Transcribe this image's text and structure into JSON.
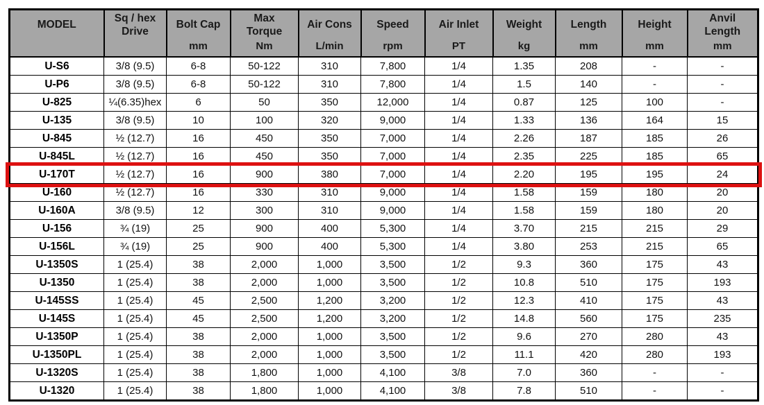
{
  "colors": {
    "page_background": "#ffffff",
    "header_background": "#a6a6a6",
    "grid_border": "#000000",
    "highlight_border": "#dd1111"
  },
  "table": {
    "columns": [
      {
        "key": "model",
        "label": "MODEL",
        "unit": ""
      },
      {
        "key": "drive",
        "label": "Sq / hex\nDrive",
        "unit": ""
      },
      {
        "key": "bolt_cap",
        "label": "Bolt Cap",
        "unit": "mm"
      },
      {
        "key": "max_torque",
        "label": "Max\nTorque",
        "unit": "Nm"
      },
      {
        "key": "air_cons",
        "label": "Air Cons",
        "unit": "L/min"
      },
      {
        "key": "speed",
        "label": "Speed",
        "unit": "rpm"
      },
      {
        "key": "air_inlet",
        "label": "Air Inlet",
        "unit": "PT"
      },
      {
        "key": "weight",
        "label": "Weight",
        "unit": "kg"
      },
      {
        "key": "length",
        "label": "Length",
        "unit": "mm"
      },
      {
        "key": "height",
        "label": "Height",
        "unit": "mm"
      },
      {
        "key": "anvil_length",
        "label": "Anvil\nLength",
        "unit": "mm"
      }
    ],
    "rows": [
      {
        "cells": [
          "U-S6",
          "3/8 (9.5)",
          "6-8",
          "50-122",
          "310",
          "7,800",
          "1/4",
          "1.35",
          "208",
          "-",
          "-"
        ]
      },
      {
        "cells": [
          "U-P6",
          "3/8 (9.5)",
          "6-8",
          "50-122",
          "310",
          "7,800",
          "1/4",
          "1.5",
          "140",
          "-",
          "-"
        ]
      },
      {
        "cells": [
          "U-825",
          "¼(6.35)hex",
          "6",
          "50",
          "350",
          "12,000",
          "1/4",
          "0.87",
          "125",
          "100",
          "-"
        ]
      },
      {
        "cells": [
          "U-135",
          "3/8 (9.5)",
          "10",
          "100",
          "320",
          "9,000",
          "1/4",
          "1.33",
          "136",
          "164",
          "15"
        ]
      },
      {
        "cells": [
          "U-845",
          "½ (12.7)",
          "16",
          "450",
          "350",
          "7,000",
          "1/4",
          "2.26",
          "187",
          "185",
          "26"
        ]
      },
      {
        "cells": [
          "U-845L",
          "½ (12.7)",
          "16",
          "450",
          "350",
          "7,000",
          "1/4",
          "2.35",
          "225",
          "185",
          "65"
        ]
      },
      {
        "cells": [
          "U-170T",
          "½ (12.7)",
          "16",
          "900",
          "380",
          "7,000",
          "1/4",
          "2.20",
          "195",
          "195",
          "24"
        ]
      },
      {
        "cells": [
          "U-160",
          "½ (12.7)",
          "16",
          "330",
          "310",
          "9,000",
          "1/4",
          "1.58",
          "159",
          "180",
          "20"
        ]
      },
      {
        "cells": [
          "U-160A",
          "3/8 (9.5)",
          "12",
          "300",
          "310",
          "9,000",
          "1/4",
          "1.58",
          "159",
          "180",
          "20"
        ]
      },
      {
        "cells": [
          "U-156",
          "¾ (19)",
          "25",
          "900",
          "400",
          "5,300",
          "1/4",
          "3.70",
          "215",
          "215",
          "29"
        ]
      },
      {
        "cells": [
          "U-156L",
          "¾ (19)",
          "25",
          "900",
          "400",
          "5,300",
          "1/4",
          "3.80",
          "253",
          "215",
          "65"
        ]
      },
      {
        "cells": [
          "U-1350S",
          "1 (25.4)",
          "38",
          "2,000",
          "1,000",
          "3,500",
          "1/2",
          "9.3",
          "360",
          "175",
          "43"
        ]
      },
      {
        "cells": [
          "U-1350",
          "1 (25.4)",
          "38",
          "2,000",
          "1,000",
          "3,500",
          "1/2",
          "10.8",
          "510",
          "175",
          "193"
        ]
      },
      {
        "cells": [
          "U-145SS",
          "1 (25.4)",
          "45",
          "2,500",
          "1,200",
          "3,200",
          "1/2",
          "12.3",
          "410",
          "175",
          "43"
        ]
      },
      {
        "cells": [
          "U-145S",
          "1 (25.4)",
          "45",
          "2,500",
          "1,200",
          "3,200",
          "1/2",
          "14.8",
          "560",
          "175",
          "235"
        ]
      },
      {
        "cells": [
          "U-1350P",
          "1 (25.4)",
          "38",
          "2,000",
          "1,000",
          "3,500",
          "1/2",
          "9.6",
          "270",
          "280",
          "43"
        ]
      },
      {
        "cells": [
          "U-1350PL",
          "1 (25.4)",
          "38",
          "2,000",
          "1,000",
          "3,500",
          "1/2",
          "11.1",
          "420",
          "280",
          "193"
        ]
      },
      {
        "cells": [
          "U-1320S",
          "1 (25.4)",
          "38",
          "1,800",
          "1,000",
          "4,100",
          "3/8",
          "7.0",
          "360",
          "-",
          "-"
        ]
      },
      {
        "cells": [
          "U-1320",
          "1 (25.4)",
          "38",
          "1,800",
          "1,000",
          "4,100",
          "3/8",
          "7.8",
          "510",
          "-",
          "-"
        ]
      }
    ]
  },
  "highlight": {
    "row_model": "U-170T"
  }
}
